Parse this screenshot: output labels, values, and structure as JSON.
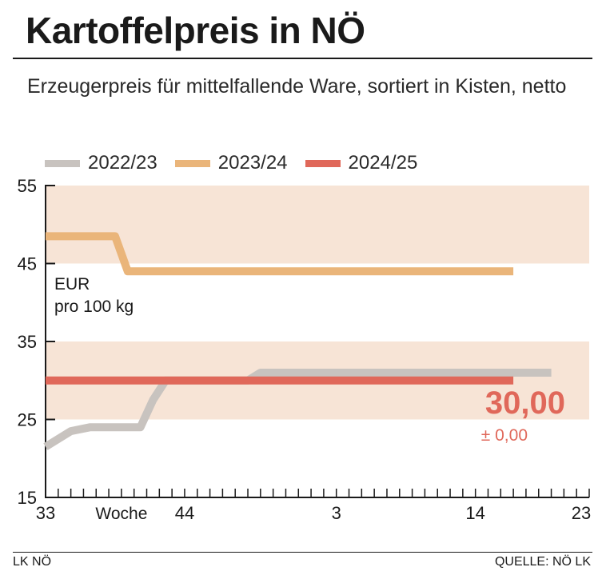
{
  "header": {
    "title": "Kartoffelpreis in NÖ",
    "subtitle": "Erzeugerpreis für mittelfallende Ware, sortiert in Kisten, netto"
  },
  "footer": {
    "left": "LK NÖ",
    "right": "QUELLE: NÖ LK"
  },
  "colors": {
    "band": "#f7e4d6",
    "series_2022": "#c8c3bf",
    "series_2023": "#eab57a",
    "series_2024": "#e0685a",
    "highlight": "#e0685a"
  },
  "chart_data": {
    "type": "line",
    "unit_label": [
      "EUR",
      "pro 100 kg"
    ],
    "x_axis_title": "Woche",
    "x_ticks": [
      "33",
      "44",
      "3",
      "14",
      "23"
    ],
    "xlim": [
      0,
      43
    ],
    "ylim": [
      15,
      55
    ],
    "y_ticks": [
      "55",
      "45",
      "35",
      "25",
      "15"
    ],
    "bands": [
      [
        45,
        55
      ],
      [
        25,
        35
      ]
    ],
    "series": [
      {
        "name": "2022/23",
        "x": [
          0,
          2,
          3.5,
          7.5,
          8.5,
          9.5,
          14,
          16,
          17,
          40
        ],
        "y": [
          21.5,
          23.5,
          24,
          24,
          27.5,
          30,
          30,
          30,
          31,
          31
        ]
      },
      {
        "name": "2023/24",
        "x": [
          0,
          5.5,
          6.5,
          37
        ],
        "y": [
          48.5,
          48.5,
          44,
          44
        ]
      },
      {
        "name": "2024/25",
        "x": [
          0,
          37
        ],
        "y": [
          30,
          30
        ]
      }
    ],
    "callout": {
      "value": "30,00",
      "change": "± 0,00"
    }
  }
}
